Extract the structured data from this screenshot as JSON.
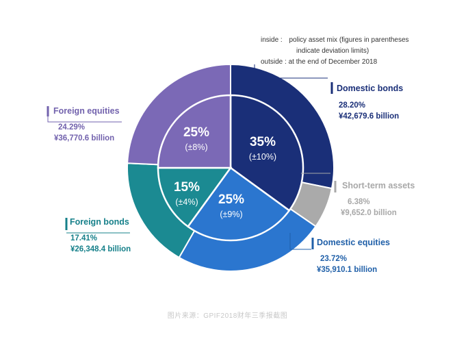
{
  "notes": {
    "inside_label": "inside :",
    "inside_line1": "policy asset mix (figures in parentheses",
    "inside_line2": "indicate deviation limits)",
    "outside_label": "outside :",
    "outside_text": "at the end of December 2018"
  },
  "caption": "图片来源：GPIF2018财年三季报截图",
  "chart_data": {
    "type": "pie",
    "variant": "nested-donut",
    "outer": [
      {
        "name": "Domestic bonds",
        "pct": "28.20%",
        "value": 28.2,
        "amount": "¥42,679.6 billion",
        "color": "#1a2f78",
        "label_color": "#1a2f78"
      },
      {
        "name": "Short-term assets",
        "pct": "6.38%",
        "value": 6.38,
        "amount": "¥9,652.0 billion",
        "color": "#aaaaaa",
        "label_color": "#a8a8a8"
      },
      {
        "name": "Domestic equities",
        "pct": "23.72%",
        "value": 23.72,
        "amount": "¥35,910.1 billion",
        "color": "#2b76cf",
        "label_color": "#1f5fa8"
      },
      {
        "name": "Foreign bonds",
        "pct": "17.41%",
        "value": 17.41,
        "amount": "¥26,348.4 billion",
        "color": "#1b8a92",
        "label_color": "#16808a"
      },
      {
        "name": "Foreign equities",
        "pct": "24.29%",
        "value": 24.29,
        "amount": "¥36,770.6 billion",
        "color": "#7b69b6",
        "label_color": "#7262ad"
      }
    ],
    "inner": [
      {
        "name": "Domestic bonds",
        "pct_label": "35%",
        "limit": "(±10%)",
        "value": 35,
        "color": "#1a2f78"
      },
      {
        "name": "Domestic equities",
        "pct_label": "25%",
        "limit": "(±9%)",
        "value": 25,
        "color": "#2b76cf"
      },
      {
        "name": "Foreign bonds",
        "pct_label": "15%",
        "limit": "(±4%)",
        "value": 15,
        "color": "#1b8a92"
      },
      {
        "name": "Foreign equities",
        "pct_label": "25%",
        "limit": "(±8%)",
        "value": 25,
        "color": "#7b69b6"
      }
    ]
  }
}
